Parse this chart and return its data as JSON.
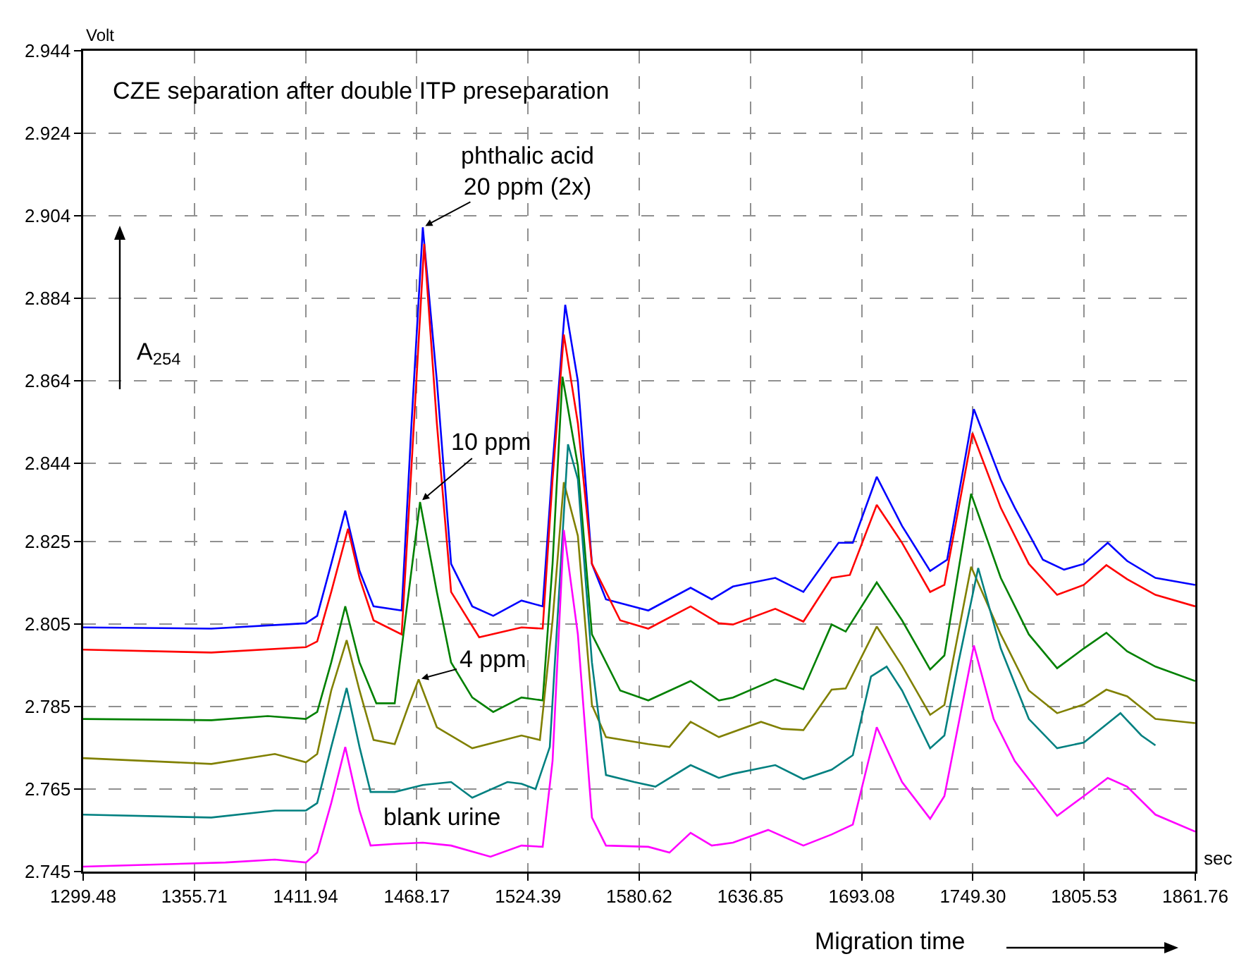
{
  "chart_data": {
    "type": "line",
    "title": "CZE separation after double ITP preseparation",
    "xlabel": "Migration time",
    "ylabel": "Volt",
    "xlim": [
      1299.48,
      1861.76
    ],
    "xticks": [
      1299.48,
      1355.71,
      1411.94,
      1468.17,
      1524.39,
      1580.62,
      1636.85,
      1693.08,
      {
        "value": 1749.3,
        "label": "1749.30"
      },
      1805.53,
      1861.76
    ],
    "ylim": [
      2.745,
      2.944
    ],
    "yticks": [
      2.745,
      2.765,
      2.785,
      2.805,
      2.825,
      2.844,
      2.864,
      2.884,
      2.904,
      2.924,
      2.944
    ],
    "grid": true,
    "annotations": [
      "A$_{254}$",
      "sec",
      {
        "text": "phthalic acid\n20 ppm (2x)",
        "x": 1471.2,
        "y": 2.9012
      },
      {
        "text": "10 ppm",
        "x": 1469.8,
        "y": 2.8346
      },
      {
        "text": "4 ppm",
        "x": 1469.1,
        "y": 2.7916
      },
      "blank urine"
    ],
    "series": [
      {
        "color": "#0000ff",
        "x": [
          1299.5,
          1364.3,
          1412.1,
          1417.8,
          1424.9,
          1432.0,
          1439.2,
          1446.3,
          1460.5,
          1465.5,
          1471.2,
          1478.3,
          1485.5,
          1496.2,
          1506.8,
          1521.1,
          1531.8,
          1536.8,
          1543.2,
          1549.6,
          1556.7,
          1563.8,
          1585.2,
          1606.6,
          1617.3,
          1628.0,
          1649.4,
          1663.6,
          1681.4,
          1688.6,
          1700.7,
          1713.5,
          1727.7,
          1736.3,
          1749.8,
          1763.4,
          1770.5,
          1784.7,
          1795.4,
          1805.4,
          1817.5,
          1827.3,
          1841.6,
          1861.7
        ],
        "values": [
          2.8042,
          2.8039,
          2.8052,
          2.807,
          2.8196,
          2.8325,
          2.8179,
          2.8093,
          2.8083,
          2.8537,
          2.9012,
          2.864,
          2.8196,
          2.8093,
          2.807,
          2.8107,
          2.8093,
          2.8434,
          2.8824,
          2.8639,
          2.8196,
          2.811,
          2.8083,
          2.8138,
          2.811,
          2.8141,
          2.8162,
          2.8128,
          2.8247,
          2.8247,
          2.8407,
          2.8288,
          2.8179,
          2.8206,
          2.8571,
          2.8401,
          2.8332,
          2.8206,
          2.8182,
          2.8196,
          2.8247,
          2.8203,
          2.8162,
          2.8145
        ]
      },
      {
        "color": "#ff0000",
        "x": [
          1299.5,
          1364.3,
          1412.1,
          1417.8,
          1424.9,
          1433.4,
          1439.2,
          1446.3,
          1460.5,
          1465.5,
          1471.9,
          1478.3,
          1485.5,
          1499.7,
          1521.1,
          1531.8,
          1536.8,
          1542.5,
          1549.6,
          1556.7,
          1571.0,
          1585.2,
          1606.6,
          1620.9,
          1628.0,
          1649.4,
          1663.6,
          1677.9,
          1687.1,
          1700.7,
          1713.5,
          1727.7,
          1734.9,
          1749.1,
          1763.4,
          1777.6,
          1791.9,
          1805.4,
          1816.8,
          1827.3,
          1841.6,
          1861.7
        ],
        "values": [
          2.7988,
          2.7981,
          2.7994,
          2.8008,
          2.8128,
          2.8281,
          2.8162,
          2.8059,
          2.8025,
          2.8434,
          2.8972,
          2.8537,
          2.8128,
          2.8018,
          2.8042,
          2.8039,
          2.8401,
          2.8752,
          2.8537,
          2.8196,
          2.8059,
          2.8039,
          2.8093,
          2.8052,
          2.8049,
          2.8087,
          2.8056,
          2.8162,
          2.8169,
          2.8339,
          2.8247,
          2.8128,
          2.8145,
          2.8513,
          2.8332,
          2.8196,
          2.8121,
          2.8145,
          2.8193,
          2.8159,
          2.8121,
          2.8093
        ]
      },
      {
        "color": "#008000",
        "x": [
          1299.5,
          1364.3,
          1392.8,
          1412.1,
          1417.8,
          1424.9,
          1432.0,
          1439.2,
          1447.7,
          1457.0,
          1464.1,
          1469.8,
          1478.3,
          1485.5,
          1496.2,
          1506.8,
          1521.1,
          1531.8,
          1536.8,
          1541.8,
          1549.6,
          1556.7,
          1571.0,
          1585.2,
          1606.6,
          1620.9,
          1628.0,
          1649.4,
          1663.6,
          1677.9,
          1685.0,
          1700.7,
          1713.5,
          1727.7,
          1734.9,
          1748.4,
          1763.4,
          1777.6,
          1791.9,
          1805.4,
          1816.8,
          1827.3,
          1841.6,
          1861.7
        ],
        "values": [
          2.782,
          2.7817,
          2.7827,
          2.782,
          2.7837,
          2.7957,
          2.8093,
          2.7957,
          2.7858,
          2.7858,
          2.8128,
          2.8346,
          2.8128,
          2.7957,
          2.7872,
          2.7837,
          2.7872,
          2.7865,
          2.8196,
          2.865,
          2.8434,
          2.8025,
          2.7889,
          2.7865,
          2.7912,
          2.7865,
          2.7872,
          2.7916,
          2.7892,
          2.8049,
          2.8032,
          2.8151,
          2.8059,
          2.794,
          2.7974,
          2.8366,
          2.8162,
          2.8025,
          2.7943,
          2.7991,
          2.8029,
          2.7984,
          2.7947,
          2.7912
        ]
      },
      {
        "color": "#808000",
        "x": [
          1299.5,
          1364.3,
          1396.4,
          1412.1,
          1417.8,
          1424.9,
          1432.7,
          1439.2,
          1446.3,
          1457.0,
          1464.1,
          1469.1,
          1478.3,
          1496.2,
          1521.1,
          1530.4,
          1536.8,
          1542.5,
          1549.6,
          1556.7,
          1563.8,
          1585.2,
          1595.9,
          1606.6,
          1620.9,
          1642.2,
          1652.9,
          1663.6,
          1677.9,
          1685.0,
          1700.7,
          1713.5,
          1727.7,
          1734.9,
          1748.4,
          1763.4,
          1777.6,
          1791.9,
          1805.4,
          1816.8,
          1827.3,
          1841.6,
          1861.7
        ],
        "values": [
          2.7725,
          2.7711,
          2.7735,
          2.7715,
          2.7735,
          2.7889,
          2.8011,
          2.7889,
          2.7769,
          2.7759,
          2.7854,
          2.7916,
          2.78,
          2.7749,
          2.778,
          2.7769,
          2.8059,
          2.8394,
          2.8264,
          2.7854,
          2.7776,
          2.7759,
          2.7752,
          2.7813,
          2.7776,
          2.7813,
          2.7796,
          2.7793,
          2.7891,
          2.7894,
          2.8044,
          2.7949,
          2.783,
          2.7854,
          2.8189,
          2.8025,
          2.7889,
          2.7834,
          2.7855,
          2.7891,
          2.7875,
          2.782,
          2.781
        ]
      },
      {
        "color": "#008080",
        "x": [
          1299.5,
          1364.3,
          1396.4,
          1412.1,
          1417.8,
          1424.9,
          1432.7,
          1439.2,
          1444.8,
          1457.0,
          1471.2,
          1485.5,
          1496.2,
          1514.0,
          1521.1,
          1528.2,
          1535.4,
          1544.6,
          1549.6,
          1556.7,
          1563.8,
          1578.1,
          1588.8,
          1606.6,
          1620.9,
          1628.0,
          1649.4,
          1663.6,
          1677.9,
          1688.6,
          1697.8,
          1705.7,
          1713.5,
          1727.7,
          1734.9,
          1742.0,
          1752.0,
          1763.4,
          1777.6,
          1791.9,
          1805.4,
          1823.9,
          1834.5,
          1841.6
        ],
        "values": [
          2.7588,
          2.7581,
          2.7598,
          2.7598,
          2.7616,
          2.7752,
          2.7895,
          2.7752,
          2.7643,
          2.7643,
          2.766,
          2.7667,
          2.7629,
          2.7667,
          2.7663,
          2.765,
          2.7752,
          2.8486,
          2.8401,
          2.7957,
          2.7684,
          2.7667,
          2.7656,
          2.7708,
          2.7677,
          2.7687,
          2.7708,
          2.7674,
          2.7697,
          2.7732,
          2.7923,
          2.7947,
          2.7889,
          2.7749,
          2.778,
          2.7957,
          2.8186,
          2.7991,
          2.782,
          2.7749,
          2.7763,
          2.7834,
          2.778,
          2.7756
        ]
      },
      {
        "color": "#ff00ff",
        "x": [
          1299.5,
          1371.4,
          1396.4,
          1412.1,
          1417.8,
          1424.9,
          1432.0,
          1439.2,
          1444.8,
          1457.0,
          1471.2,
          1485.5,
          1505.4,
          1521.1,
          1531.8,
          1536.8,
          1542.5,
          1549.6,
          1556.7,
          1563.8,
          1585.2,
          1595.9,
          1606.6,
          1617.3,
          1628.0,
          1645.8,
          1663.6,
          1677.9,
          1688.6,
          1700.7,
          1713.5,
          1727.7,
          1734.9,
          1749.8,
          1759.8,
          1770.5,
          1791.9,
          1805.4,
          1817.5,
          1827.3,
          1841.6,
          1861.7
        ],
        "values": [
          2.7462,
          2.7472,
          2.7479,
          2.7472,
          2.7496,
          2.7616,
          2.7752,
          2.7598,
          2.7513,
          2.7517,
          2.752,
          2.7513,
          2.7486,
          2.7513,
          2.751,
          2.7718,
          2.8278,
          2.8025,
          2.7581,
          2.7513,
          2.751,
          2.7496,
          2.7544,
          2.7513,
          2.752,
          2.7551,
          2.7513,
          2.754,
          2.7564,
          2.78,
          2.7667,
          2.7578,
          2.7633,
          2.7998,
          2.782,
          2.7718,
          2.7585,
          2.7633,
          2.7677,
          2.7656,
          2.7588,
          2.7547
        ]
      }
    ]
  }
}
